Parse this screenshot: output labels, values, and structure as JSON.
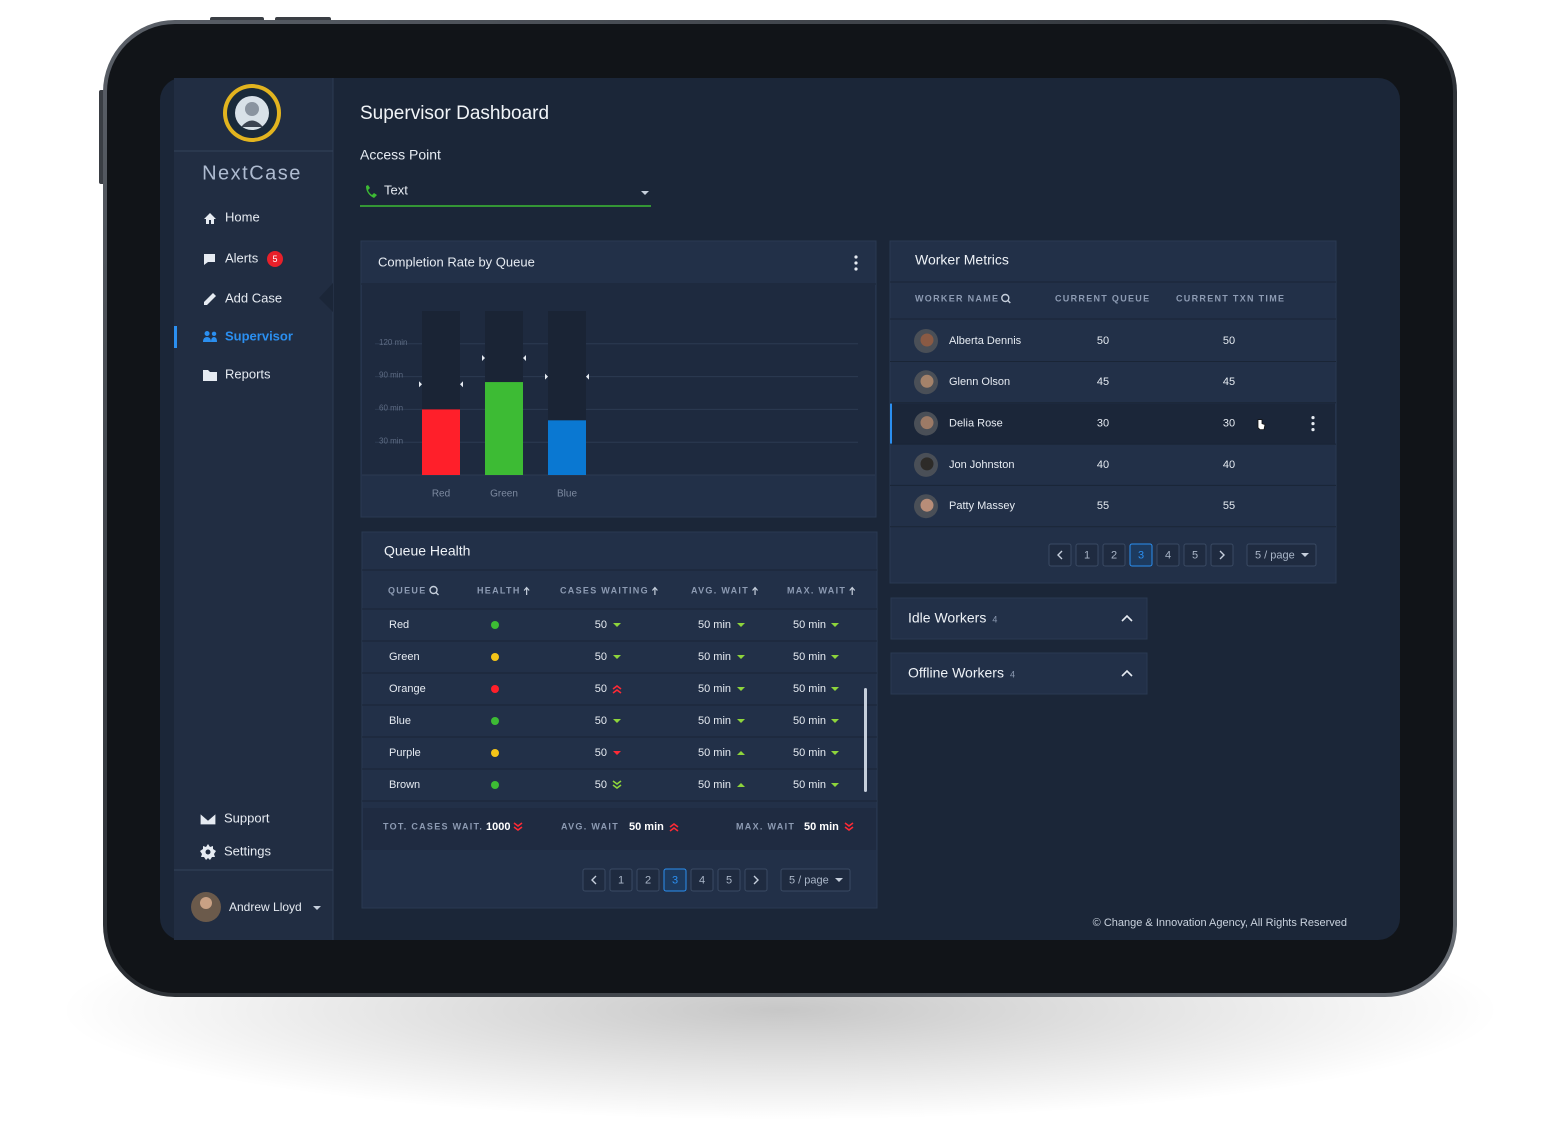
{
  "sidebar": {
    "brand": "NextCase",
    "nav": [
      {
        "label": "Home",
        "icon": "home"
      },
      {
        "label": "Alerts",
        "icon": "alerts",
        "badge": 5
      },
      {
        "label": "Add Case",
        "icon": "edit"
      },
      {
        "label": "Supervisor",
        "icon": "people",
        "active": true
      },
      {
        "label": "Reports",
        "icon": "folder"
      }
    ],
    "bottom_nav": [
      {
        "label": "Support",
        "icon": "mail"
      },
      {
        "label": "Settings",
        "icon": "gear"
      }
    ],
    "user": "Andrew Lloyd"
  },
  "header": {
    "title": "Supervisor Dashboard",
    "access_label": "Access Point",
    "access_value": "Text"
  },
  "completion_chart": {
    "type": "bar",
    "title": "Completion Rate by Queue",
    "categories": [
      "Red",
      "Green",
      "Blue"
    ],
    "values": [
      60,
      85,
      50
    ],
    "targets": [
      83,
      107,
      90
    ],
    "colors": [
      "#ff1f2a",
      "#3dbb34",
      "#0a78d2"
    ],
    "ylim": [
      0,
      150
    ],
    "yticks": [
      {
        "value": 30,
        "label": "30 min"
      },
      {
        "value": 60,
        "label": "60 min"
      },
      {
        "value": 90,
        "label": "90 min"
      },
      {
        "value": 120,
        "label": "120 min"
      }
    ],
    "grid": true
  },
  "queue_health": {
    "title": "Queue Health",
    "columns": [
      "QUEUE",
      "HEALTH",
      "CASES WAITING",
      "AVG. WAIT",
      "MAX. WAIT"
    ],
    "rows": [
      {
        "queue": "Red",
        "health": "#3dbb34",
        "cases": "50",
        "cases_trend": "down-green",
        "avg": "50 min",
        "avg_trend": "down-green",
        "max": "50 min",
        "max_trend": "down-green"
      },
      {
        "queue": "Green",
        "health": "#f5c518",
        "cases": "50",
        "cases_trend": "down-green",
        "avg": "50 min",
        "avg_trend": "down-green",
        "max": "50 min",
        "max_trend": "down-green"
      },
      {
        "queue": "Orange",
        "health": "#ff1f2a",
        "cases": "50",
        "cases_trend": "up2-red",
        "avg": "50 min",
        "avg_trend": "down-green",
        "max": "50 min",
        "max_trend": "down-green"
      },
      {
        "queue": "Blue",
        "health": "#3dbb34",
        "cases": "50",
        "cases_trend": "down-green",
        "avg": "50 min",
        "avg_trend": "down-green",
        "max": "50 min",
        "max_trend": "down-green"
      },
      {
        "queue": "Purple",
        "health": "#f5c518",
        "cases": "50",
        "cases_trend": "down-red",
        "avg": "50 min",
        "avg_trend": "up-green",
        "max": "50 min",
        "max_trend": "down-green"
      },
      {
        "queue": "Brown",
        "health": "#3dbb34",
        "cases": "50",
        "cases_trend": "down2-green",
        "avg": "50 min",
        "avg_trend": "up-green",
        "max": "50 min",
        "max_trend": "down-green"
      }
    ],
    "totals": [
      {
        "label": "TOT. CASES WAIT.",
        "value": "1000",
        "trend": "down2-red"
      },
      {
        "label": "AVG. WAIT",
        "value": "50 min",
        "trend": "up2-red"
      },
      {
        "label": "MAX. WAIT",
        "value": "50 min",
        "trend": "down2-red"
      }
    ],
    "pagination": {
      "pages": [
        1,
        2,
        3,
        4,
        5
      ],
      "active_page": 3,
      "per_page": "5 / page"
    }
  },
  "worker_metrics": {
    "title": "Worker Metrics",
    "columns": [
      "WORKER NAME",
      "CURRENT QUEUE",
      "CURRENT TXN TIME"
    ],
    "rows": [
      {
        "name": "Alberta Dennis",
        "queue": 50,
        "txn": 50
      },
      {
        "name": "Glenn Olson",
        "queue": 45,
        "txn": 45
      },
      {
        "name": "Delia Rose",
        "queue": 30,
        "txn": 30,
        "selected": true
      },
      {
        "name": "Jon Johnston",
        "queue": 40,
        "txn": 40
      },
      {
        "name": "Patty Massey",
        "queue": 55,
        "txn": 55
      }
    ],
    "pagination": {
      "pages": [
        1,
        2,
        3,
        4,
        5
      ],
      "active_page": 3,
      "per_page": "5 / page"
    }
  },
  "idle_workers": {
    "label": "Idle Workers",
    "count": 4
  },
  "offline_workers": {
    "label": "Offline Workers",
    "count": 4
  },
  "footer": "© Change & Innovation Agency, All Rights Reserved"
}
